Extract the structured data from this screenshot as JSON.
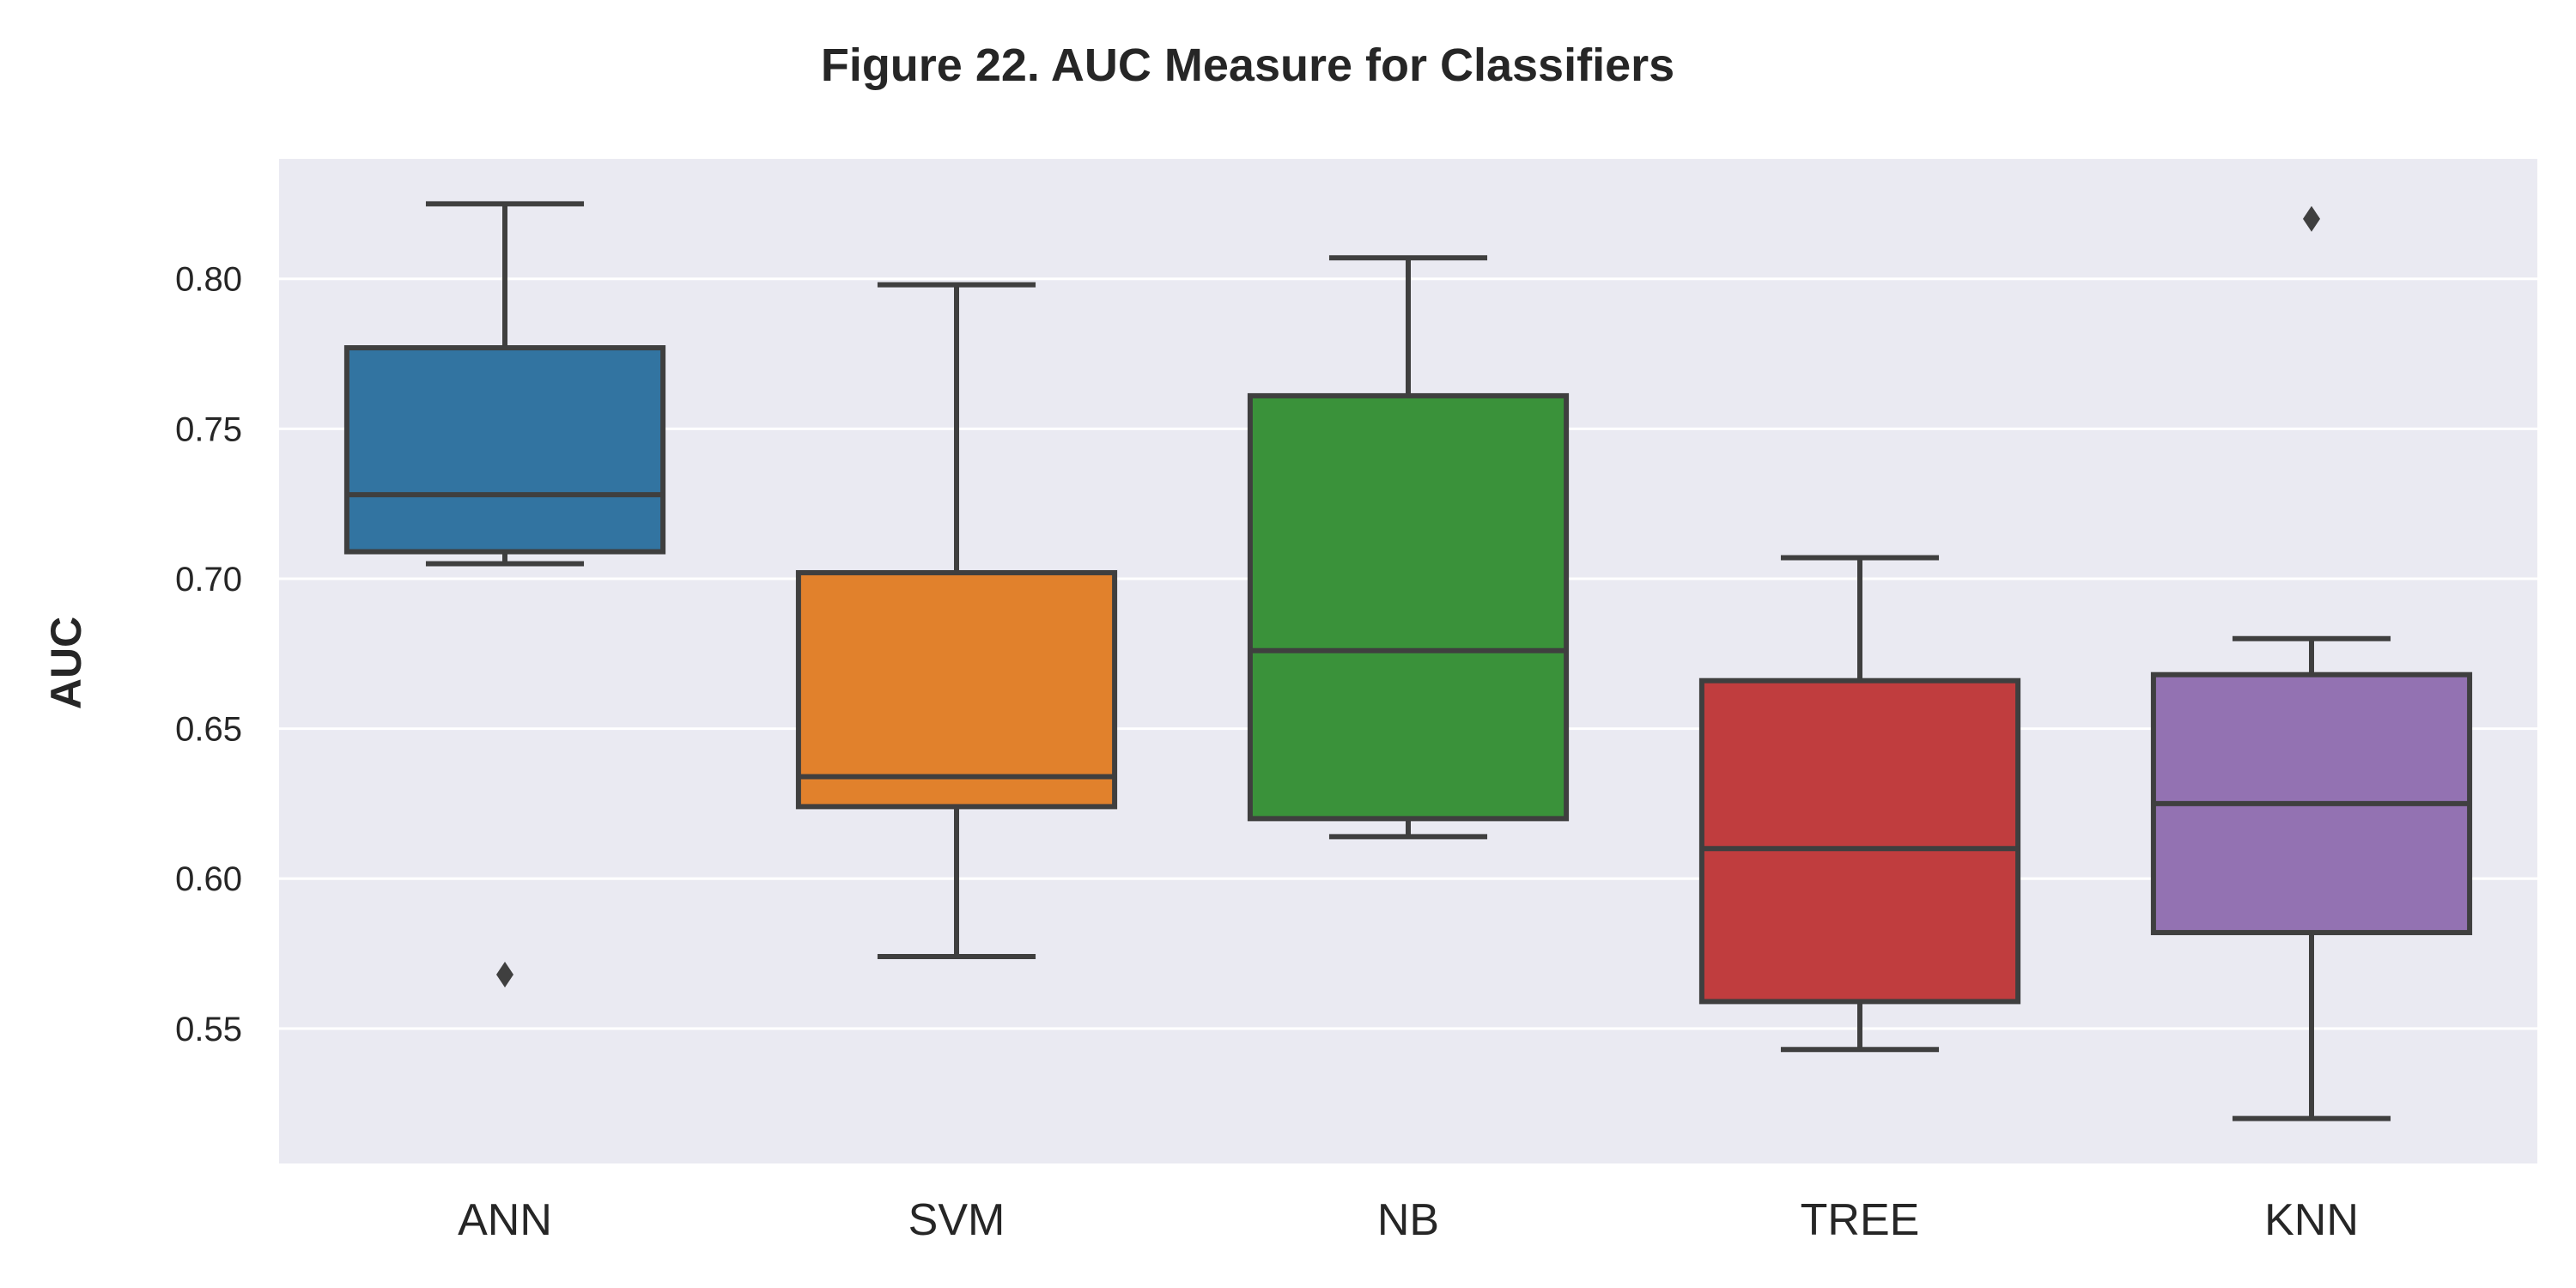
{
  "chart_data": {
    "type": "box",
    "title": "Figure 22.  AUC Measure for Classifiers",
    "xlabel": "",
    "ylabel": "AUC",
    "ylim": [
      0.505,
      0.84
    ],
    "yticks": [
      "0.55",
      "0.60",
      "0.65",
      "0.70",
      "0.75",
      "0.80"
    ],
    "grid": true,
    "background": "#eaeaf2",
    "gridColor": "#ffffff",
    "lineColor": "#3f3f3f",
    "categories": [
      "ANN",
      "SVM",
      "NB",
      "TREE",
      "KNN"
    ],
    "boxes": [
      {
        "category": "ANN",
        "color": "#3274a1",
        "whisker_low": 0.705,
        "q1": 0.709,
        "median": 0.728,
        "q3": 0.777,
        "whisker_high": 0.825,
        "outliers": [
          0.568
        ]
      },
      {
        "category": "SVM",
        "color": "#e1812c",
        "whisker_low": 0.574,
        "q1": 0.624,
        "median": 0.634,
        "q3": 0.702,
        "whisker_high": 0.798,
        "outliers": []
      },
      {
        "category": "NB",
        "color": "#3a923a",
        "whisker_low": 0.614,
        "q1": 0.62,
        "median": 0.676,
        "q3": 0.761,
        "whisker_high": 0.807,
        "outliers": []
      },
      {
        "category": "TREE",
        "color": "#c03d3e",
        "whisker_low": 0.543,
        "q1": 0.559,
        "median": 0.61,
        "q3": 0.666,
        "whisker_high": 0.707,
        "outliers": []
      },
      {
        "category": "KNN",
        "color": "#9372b2",
        "whisker_low": 0.52,
        "q1": 0.582,
        "median": 0.625,
        "q3": 0.668,
        "whisker_high": 0.68,
        "outliers": [
          0.82
        ]
      }
    ]
  }
}
